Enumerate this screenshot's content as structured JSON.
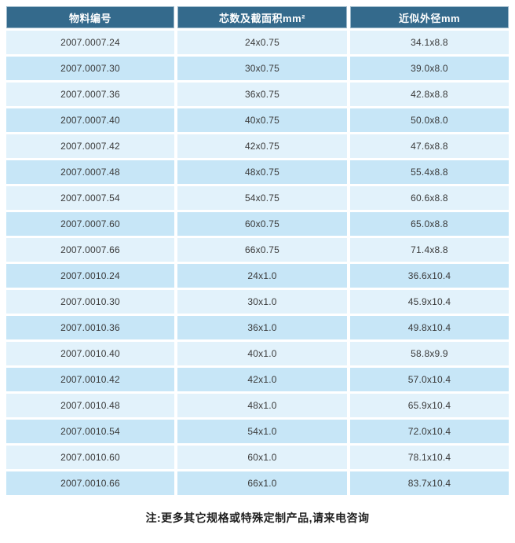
{
  "colors": {
    "header_bg": "#346a8c",
    "row_odd_bg": "#e2f2fb",
    "row_even_bg": "#c7e6f7",
    "header_text": "#ffffff",
    "cell_text": "#3a3a3a",
    "note_text": "#1f1f1f",
    "page_bg": "#ffffff"
  },
  "table": {
    "columns": [
      {
        "label": "物料编号"
      },
      {
        "label": "芯数及截面积mm²"
      },
      {
        "label": "近似外径mm"
      }
    ],
    "rows": [
      [
        "2007.0007.24",
        "24x0.75",
        "34.1x8.8"
      ],
      [
        "2007.0007.30",
        "30x0.75",
        "39.0x8.0"
      ],
      [
        "2007.0007.36",
        "36x0.75",
        "42.8x8.8"
      ],
      [
        "2007.0007.40",
        "40x0.75",
        "50.0x8.0"
      ],
      [
        "2007.0007.42",
        "42x0.75",
        "47.6x8.8"
      ],
      [
        "2007.0007.48",
        "48x0.75",
        "55.4x8.8"
      ],
      [
        "2007.0007.54",
        "54x0.75",
        "60.6x8.8"
      ],
      [
        "2007.0007.60",
        "60x0.75",
        "65.0x8.8"
      ],
      [
        "2007.0007.66",
        "66x0.75",
        "71.4x8.8"
      ],
      [
        "2007.0010.24",
        "24x1.0",
        "36.6x10.4"
      ],
      [
        "2007.0010.30",
        "30x1.0",
        "45.9x10.4"
      ],
      [
        "2007.0010.36",
        "36x1.0",
        "49.8x10.4"
      ],
      [
        "2007.0010.40",
        "40x1.0",
        "58.8x9.9"
      ],
      [
        "2007.0010.42",
        "42x1.0",
        "57.0x10.4"
      ],
      [
        "2007.0010.48",
        "48x1.0",
        "65.9x10.4"
      ],
      [
        "2007.0010.54",
        "54x1.0",
        "72.0x10.4"
      ],
      [
        "2007.0010.60",
        "60x1.0",
        "78.1x10.4"
      ],
      [
        "2007.0010.66",
        "66x1.0",
        "83.7x10.4"
      ]
    ]
  },
  "note": "注:更多其它规格或特殊定制产品,请来电咨询"
}
